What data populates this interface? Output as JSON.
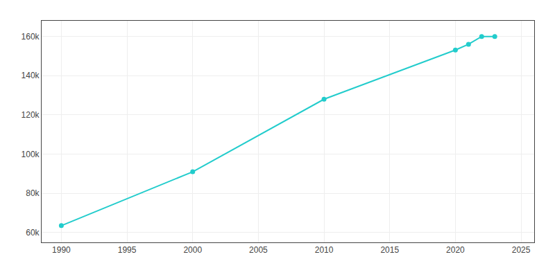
{
  "chart_data": {
    "type": "line",
    "x": [
      1990,
      2000,
      2010,
      2020,
      2021,
      2022,
      2023
    ],
    "values": [
      63535,
      91000,
      128000,
      153095,
      156000,
      160000,
      160000
    ],
    "color": "#22CCCC",
    "marker": "circle",
    "xlim": [
      1988.5,
      2026
    ],
    "ylim": [
      55000,
      168000
    ],
    "xticks": [
      1990,
      1995,
      2000,
      2005,
      2010,
      2015,
      2020,
      2025
    ],
    "yticks": [
      {
        "value": 60000,
        "label": "60k"
      },
      {
        "value": 80000,
        "label": "80k"
      },
      {
        "value": 100000,
        "label": "100k"
      },
      {
        "value": 120000,
        "label": "120k"
      },
      {
        "value": 140000,
        "label": "140k"
      },
      {
        "value": 160000,
        "label": "160k"
      }
    ],
    "grid": true
  }
}
